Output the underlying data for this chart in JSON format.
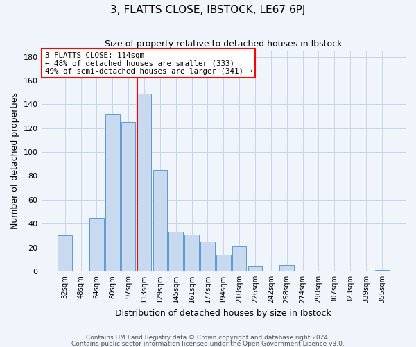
{
  "title": "3, FLATTS CLOSE, IBSTOCK, LE67 6PJ",
  "subtitle": "Size of property relative to detached houses in Ibstock",
  "xlabel": "Distribution of detached houses by size in Ibstock",
  "ylabel": "Number of detached properties",
  "bar_labels": [
    "32sqm",
    "48sqm",
    "64sqm",
    "80sqm",
    "97sqm",
    "113sqm",
    "129sqm",
    "145sqm",
    "161sqm",
    "177sqm",
    "194sqm",
    "210sqm",
    "226sqm",
    "242sqm",
    "258sqm",
    "274sqm",
    "290sqm",
    "307sqm",
    "323sqm",
    "339sqm",
    "355sqm"
  ],
  "bar_values": [
    30,
    0,
    45,
    132,
    125,
    149,
    85,
    33,
    31,
    25,
    14,
    21,
    4,
    0,
    5,
    0,
    0,
    0,
    0,
    0,
    1
  ],
  "bar_color": "#c9d9f0",
  "bar_edge_color": "#5b9bd5",
  "vline_index": 5,
  "vline_color": "red",
  "annotation_title": "3 FLATTS CLOSE: 114sqm",
  "annotation_line1": "← 48% of detached houses are smaller (333)",
  "annotation_line2": "49% of semi-detached houses are larger (341) →",
  "annotation_box_color": "red",
  "ylim": [
    0,
    185
  ],
  "yticks": [
    0,
    20,
    40,
    60,
    80,
    100,
    120,
    140,
    160,
    180
  ],
  "footer1": "Contains HM Land Registry data © Crown copyright and database right 2024.",
  "footer2": "Contains public sector information licensed under the Open Government Licence v3.0.",
  "bg_color": "#f0f4fb",
  "grid_color": "#c8d4e8"
}
